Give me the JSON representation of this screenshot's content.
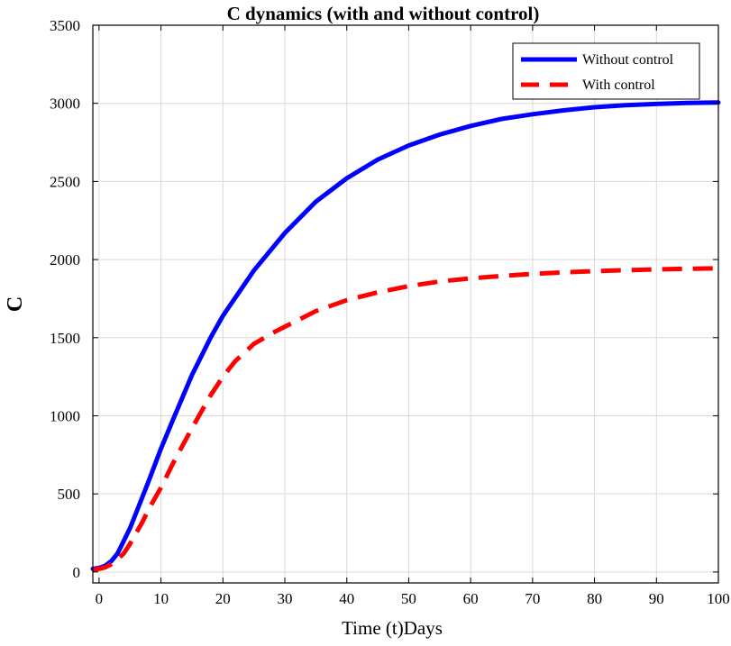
{
  "chart_data": {
    "type": "line",
    "title": "C dynamics (with and without control)",
    "xlabel": "Time (t)Days",
    "ylabel": "C",
    "xlim": [
      -1,
      100
    ],
    "ylim": [
      -70,
      3500
    ],
    "xticks": [
      0,
      10,
      20,
      30,
      40,
      50,
      60,
      70,
      80,
      90,
      100
    ],
    "xtick_labels": [
      "0",
      "10",
      "20",
      "30",
      "40",
      "50",
      "60",
      "70",
      "80",
      "90",
      "100"
    ],
    "yticks": [
      0,
      500,
      1000,
      1500,
      2000,
      2500,
      3000,
      3500
    ],
    "ytick_labels": [
      "0",
      "500",
      "1000",
      "1500",
      "2000",
      "2500",
      "3000",
      "3500"
    ],
    "grid": true,
    "legend_position": "top-right",
    "series": [
      {
        "name": "Without control",
        "color": "#0000ff",
        "style": "solid",
        "x": [
          -1,
          0,
          1,
          2,
          3,
          4,
          5,
          6,
          7,
          8,
          10,
          12,
          15,
          18,
          20,
          25,
          30,
          35,
          40,
          45,
          50,
          55,
          60,
          65,
          70,
          75,
          80,
          85,
          90,
          95,
          100
        ],
        "y": [
          20,
          25,
          40,
          70,
          120,
          200,
          280,
          380,
          480,
          580,
          790,
          980,
          1260,
          1500,
          1640,
          1930,
          2170,
          2370,
          2520,
          2640,
          2730,
          2800,
          2855,
          2900,
          2930,
          2955,
          2975,
          2988,
          2996,
          3002,
          3005
        ]
      },
      {
        "name": "With control",
        "color": "#ff0000",
        "style": "dashed",
        "x": [
          -1,
          0,
          1,
          2,
          3,
          4,
          5,
          6,
          7,
          8,
          10,
          12,
          15,
          18,
          20,
          22,
          25,
          28,
          30,
          35,
          40,
          45,
          50,
          55,
          60,
          65,
          70,
          75,
          80,
          85,
          90,
          95,
          100
        ],
        "y": [
          15,
          20,
          30,
          50,
          80,
          120,
          180,
          250,
          320,
          400,
          540,
          700,
          920,
          1130,
          1250,
          1350,
          1460,
          1530,
          1570,
          1670,
          1740,
          1790,
          1830,
          1860,
          1880,
          1895,
          1908,
          1918,
          1926,
          1932,
          1937,
          1941,
          1944
        ]
      }
    ]
  }
}
